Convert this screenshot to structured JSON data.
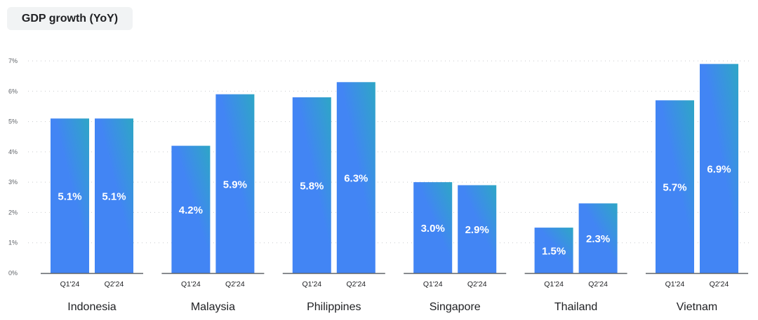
{
  "chart_data": {
    "type": "bar",
    "title": "GDP growth (YoY)",
    "xlabel": "",
    "ylabel": "",
    "ylim": [
      0,
      7
    ],
    "yticks": [
      "0%",
      "1%",
      "2%",
      "3%",
      "4%",
      "5%",
      "6%",
      "7%"
    ],
    "grid": true,
    "categories": [
      "Indonesia",
      "Malaysia",
      "Philippines",
      "Singapore",
      "Thailand",
      "Vietnam"
    ],
    "series": [
      {
        "name": "Q1'24",
        "values": [
          5.1,
          4.2,
          5.8,
          3.0,
          1.5,
          5.7
        ],
        "labels": [
          "5.1%",
          "4.2%",
          "5.8%",
          "3.0%",
          "1.5%",
          "5.7%"
        ]
      },
      {
        "name": "Q2'24",
        "values": [
          5.1,
          5.9,
          6.3,
          2.9,
          2.3,
          6.9
        ],
        "labels": [
          "5.1%",
          "5.9%",
          "6.3%",
          "2.9%",
          "2.3%",
          "6.9%"
        ]
      }
    ],
    "colors": {
      "bar_bottom": "#4285f4",
      "bar_top": "#2ea6c6",
      "grid": "#c8cacd",
      "baseline": "#5f6368"
    }
  }
}
